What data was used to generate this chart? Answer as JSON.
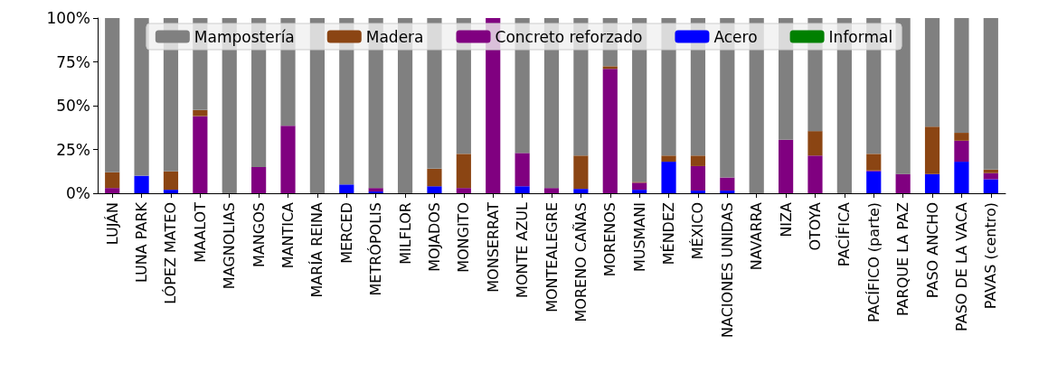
{
  "chart_data": {
    "type": "bar",
    "stacked": true,
    "legend": "top",
    "grid": false,
    "categories": [
      "LUJÁN",
      "LUNA PARK",
      "LÓPEZ MATEO",
      "MAALOT",
      "MAGNOLIAS",
      "MANGOS",
      "MANTICA",
      "MARÍA REINA",
      "MERCED",
      "METRÓPOLIS",
      "MILFLOR",
      "MOJADOS",
      "MONGITO",
      "MONSERRAT",
      "MONTE AZUL",
      "MONTEALEGRE",
      "MORENO CAÑAS",
      "MORENOS",
      "MUSMANI",
      "MÉNDEZ",
      "MÉXICO",
      "NACIONES UNIDAS",
      "NAVARRA",
      "NIZA",
      "OTOYA",
      "PACÍFICA",
      "PACÍFICO (parte)",
      "PARQUE LA PAZ",
      "PASO ANCHO",
      "PASO DE LA VACA",
      "PAVAS (centro)"
    ],
    "ylim": [
      0,
      100
    ],
    "yticks": [
      {
        "value": 0,
        "label": "0%"
      },
      {
        "value": 25,
        "label": "25%"
      },
      {
        "value": 50,
        "label": "50%"
      },
      {
        "value": 75,
        "label": "75%"
      },
      {
        "value": 100,
        "label": "100%"
      }
    ],
    "series": [
      {
        "name": "Acero",
        "color": "#0000ff",
        "values": [
          0,
          10,
          2,
          0,
          0,
          0,
          0,
          0,
          5,
          1,
          0,
          4,
          0,
          0,
          4,
          0,
          2.5,
          0,
          2,
          18,
          1.5,
          1.5,
          0,
          0,
          0,
          0,
          12.5,
          0,
          11,
          18,
          8
        ]
      },
      {
        "name": "Concreto reforzado",
        "color": "#800080",
        "values": [
          3,
          0,
          0,
          44,
          0,
          15,
          38.5,
          0,
          0,
          2,
          0,
          0,
          3,
          100,
          19,
          3,
          0,
          71,
          4,
          0,
          14,
          7.5,
          0,
          30.5,
          21.5,
          0,
          0.5,
          11,
          0,
          12,
          3.5
        ]
      },
      {
        "name": "Madera",
        "color": "#8b4513",
        "values": [
          9,
          0,
          10.5,
          3.5,
          0,
          0,
          0,
          0,
          0,
          0,
          0,
          10,
          19.5,
          0,
          0,
          0,
          19,
          1.5,
          0.5,
          3.5,
          6,
          0,
          0,
          0,
          14,
          0,
          9.5,
          0,
          27,
          4.5,
          2
        ]
      },
      {
        "name": "Mampostería",
        "color": "#808080",
        "values": [
          88,
          90,
          87.5,
          52.5,
          100,
          85,
          61.5,
          100,
          95,
          97,
          100,
          86,
          77.5,
          0,
          77,
          97,
          78.5,
          27.5,
          93.5,
          78.5,
          78.5,
          91,
          100,
          69.5,
          64.5,
          100,
          77.5,
          89,
          62,
          65.5,
          86.5
        ]
      },
      {
        "name": "Informal",
        "color": "#008000",
        "values": [
          0,
          0,
          0,
          0,
          0,
          0,
          0,
          0,
          0,
          0,
          0,
          0,
          0,
          0,
          0,
          0,
          0,
          0,
          0,
          0,
          0,
          0,
          0,
          0,
          0,
          0,
          0,
          0,
          0,
          0,
          0
        ]
      }
    ]
  }
}
